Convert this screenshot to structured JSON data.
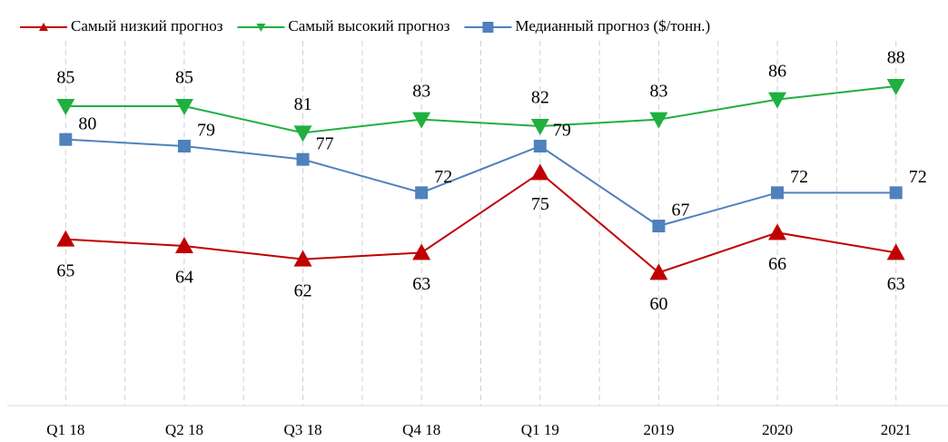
{
  "chart_data": {
    "type": "line",
    "categories": [
      "Q1 18",
      "Q2 18",
      "Q3 18",
      "Q4 18",
      "Q1 19",
      "2019",
      "2020",
      "2021"
    ],
    "series": [
      {
        "name": "Самый низкий прогноз",
        "color": "#c00000",
        "marker": "triangle-up",
        "values": [
          65,
          64,
          62,
          63,
          75,
          60,
          66,
          63
        ]
      },
      {
        "name": "Самый высокий прогноз",
        "color": "#1fb040",
        "marker": "triangle-down",
        "values": [
          85,
          85,
          81,
          83,
          82,
          83,
          86,
          88
        ]
      },
      {
        "name": "Медианный прогноз ($/тонн.)",
        "color": "#4f81bd",
        "marker": "square",
        "values": [
          80,
          79,
          77,
          72,
          79,
          67,
          72,
          72
        ]
      }
    ],
    "ylim": [
      40,
      100
    ],
    "legend": "top",
    "grid": true
  }
}
